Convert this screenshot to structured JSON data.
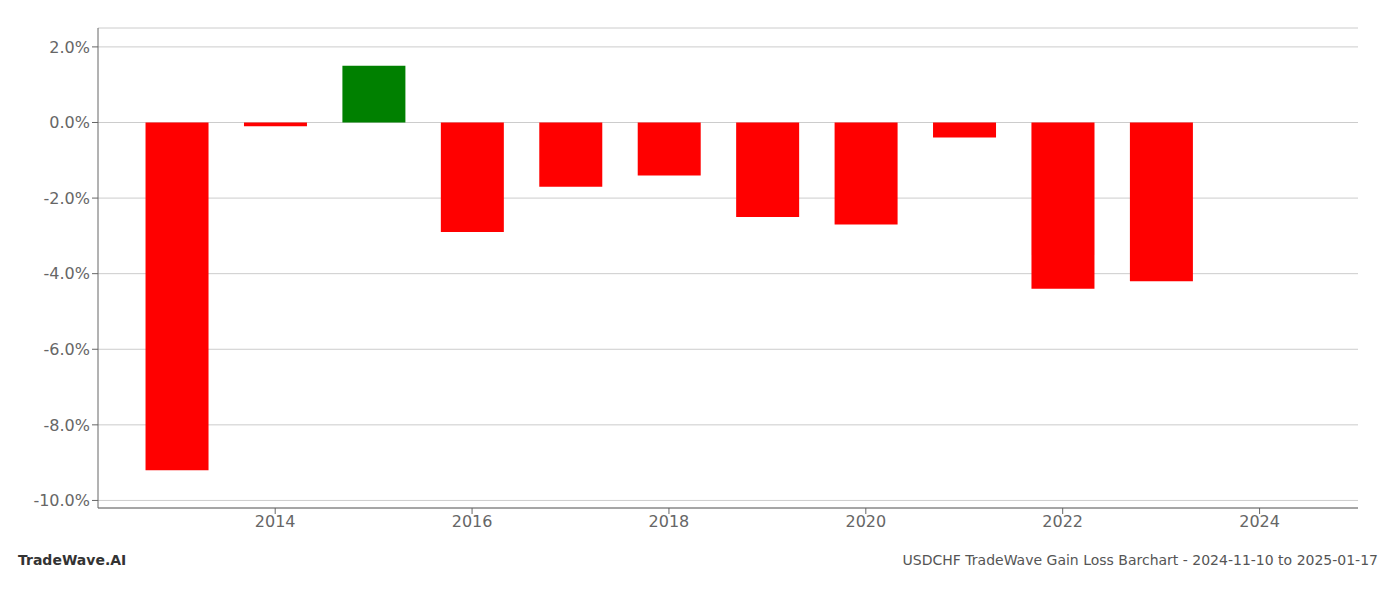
{
  "chart_data": {
    "type": "bar",
    "title": "USDCHF TradeWave Gain Loss Barchart - 2024-11-10 to 2025-01-17",
    "annotations": [
      "TradeWave.AI"
    ],
    "x": [
      2013,
      2014,
      2015,
      2016,
      2017,
      2018,
      2019,
      2020,
      2021,
      2022,
      2023
    ],
    "values": [
      -0.092,
      -0.001,
      0.015,
      -0.029,
      -0.017,
      -0.014,
      -0.025,
      -0.027,
      -0.004,
      -0.044,
      -0.042
    ],
    "colors": [
      "#ff0000",
      "#ff0000",
      "#008000",
      "#ff0000",
      "#ff0000",
      "#ff0000",
      "#ff0000",
      "#ff0000",
      "#ff0000",
      "#ff0000",
      "#ff0000"
    ],
    "xlim": [
      2012.2,
      2025
    ],
    "xticks": [
      2014,
      2016,
      2018,
      2020,
      2022,
      2024
    ],
    "ylim": [
      -0.102,
      0.025
    ],
    "yticks": [
      {
        "value": -0.1,
        "label": "-10.0%"
      },
      {
        "value": -0.08,
        "label": "-8.0%"
      },
      {
        "value": -0.06,
        "label": "-6.0%"
      },
      {
        "value": -0.04,
        "label": "-4.0%"
      },
      {
        "value": -0.02,
        "label": "-2.0%"
      },
      {
        "value": 0,
        "label": "0.0%"
      },
      {
        "value": 0.02,
        "label": "2.0%"
      }
    ],
    "grid": true
  }
}
